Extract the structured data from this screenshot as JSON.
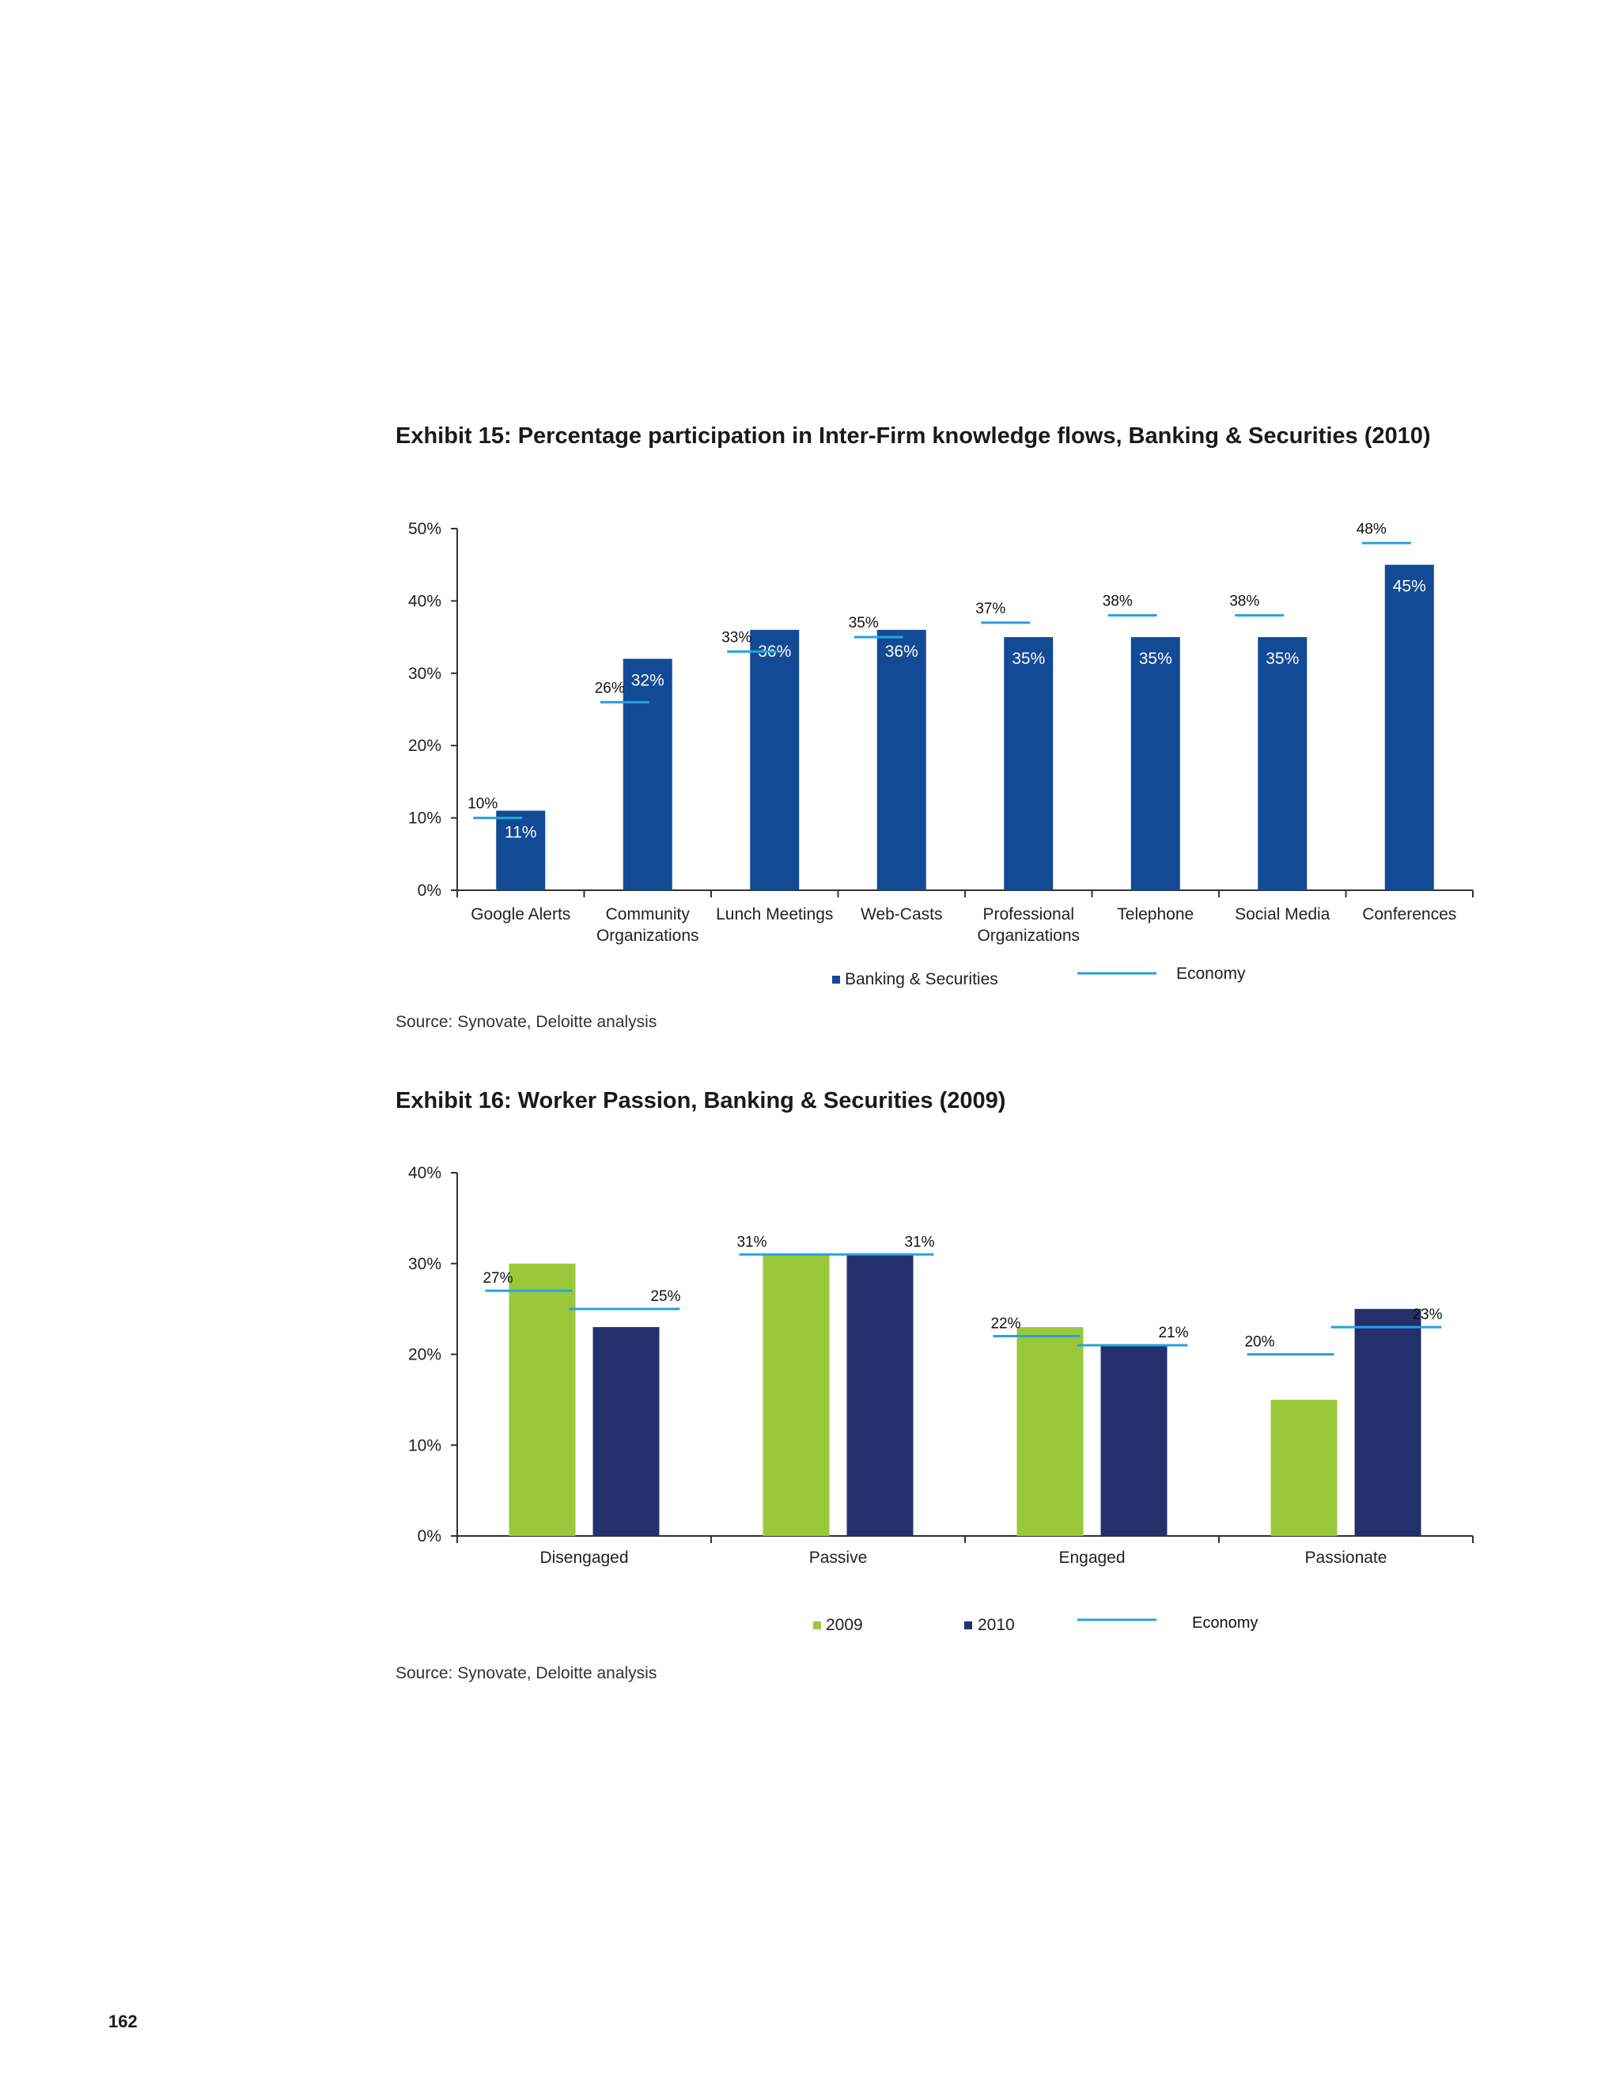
{
  "exhibit15": {
    "title": "Exhibit 15: Percentage participation in Inter-Firm knowledge flows, Banking & Securities (2010)",
    "source": "Source: Synovate, Deloitte analysis"
  },
  "exhibit16": {
    "title": "Exhibit 16: Worker Passion, Banking & Securities (2009)",
    "source": "Source: Synovate, Deloitte analysis"
  },
  "page_number": "162",
  "colors": {
    "banking": "#134a96",
    "economy_line": "#27a3dc",
    "y2009": "#99c93b",
    "y2010": "#24306c",
    "axis": "#333333"
  },
  "chart_data": [
    {
      "type": "bar",
      "categories": [
        [
          "Google Alerts"
        ],
        [
          "Community",
          "Organizations"
        ],
        [
          "Lunch Meetings"
        ],
        [
          "Web-Casts"
        ],
        [
          "Professional",
          "Organizations"
        ],
        [
          "Telephone"
        ],
        [
          "Social Media"
        ],
        [
          "Conferences"
        ]
      ],
      "series": [
        {
          "name": "Banking & Securities",
          "values": [
            11,
            32,
            36,
            36,
            35,
            35,
            35,
            45
          ],
          "labels": [
            "11%",
            "32%",
            "36%",
            "36%",
            "35%",
            "35%",
            "35%",
            "45%"
          ]
        },
        {
          "name": "Economy",
          "values": [
            10,
            26,
            33,
            35,
            37,
            38,
            38,
            48
          ],
          "labels": [
            "10%",
            "26%",
            "33%",
            "35%",
            "37%",
            "38%",
            "38%",
            "48%"
          ]
        }
      ],
      "yticks": [
        "0%",
        "10%",
        "20%",
        "30%",
        "40%",
        "50%"
      ],
      "ylim": [
        0,
        50
      ],
      "legend": [
        "Banking & Securities",
        "Economy"
      ],
      "legend_position": "bottom"
    },
    {
      "type": "bar",
      "categories": [
        "Disengaged",
        "Passive",
        "Engaged",
        "Passionate"
      ],
      "series": [
        {
          "name": "2009",
          "values": [
            30,
            31,
            23,
            15
          ]
        },
        {
          "name": "2010",
          "values": [
            23,
            31,
            21,
            25
          ]
        }
      ],
      "economy": {
        "name": "Economy",
        "2009": {
          "values": [
            27,
            31,
            22,
            20
          ],
          "labels": [
            "27%",
            "31%",
            "22%",
            "20%"
          ]
        },
        "2010": {
          "values": [
            25,
            31,
            21,
            23
          ],
          "labels": [
            "25%",
            "31%",
            "21%",
            "23%"
          ]
        }
      },
      "yticks": [
        "0%",
        "10%",
        "20%",
        "30%",
        "40%"
      ],
      "ylim": [
        0,
        40
      ],
      "legend": [
        "2009",
        "2010",
        "Economy"
      ],
      "legend_position": "bottom"
    }
  ]
}
